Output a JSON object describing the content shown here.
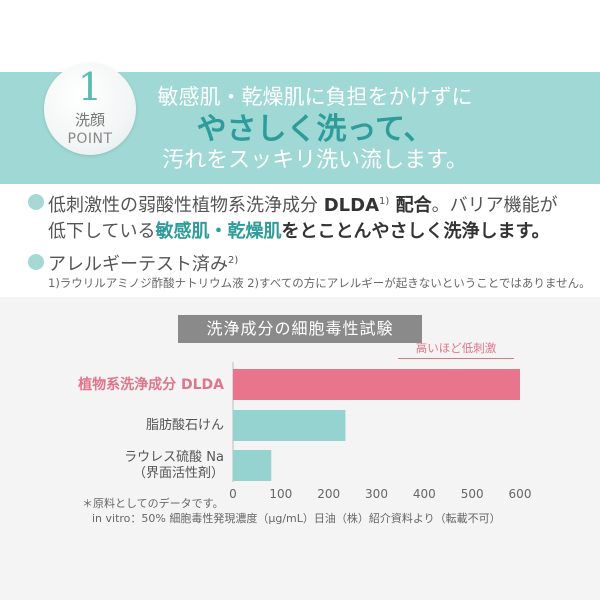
{
  "badge": {
    "number": "1",
    "word": "洗顔",
    "point": "POINT"
  },
  "headline": {
    "line1": "敏感肌・乾燥肌に負担をかけずに",
    "line2": "やさしく洗って、",
    "line3": "汚れをスッキリ洗い流します。"
  },
  "bullets": {
    "b1_part1": "低刺激性の弱酸性植物系洗浄成分 ",
    "b1_dlda": "DLDA",
    "b1_sup": "1)",
    "b1_part2": " 配合",
    "b1_part3": "。バリア機能が",
    "b1_line2_a": "低下している",
    "b1_line2_b": "敏感肌・乾燥肌",
    "b1_line2_c": "をとことんやさしく洗浄します。",
    "b2_text": "アレルギーテスト済み",
    "b2_sup": "2)",
    "footnote": "1)ラウリルアミノジ酢酸ナトリウム液 2)すべての方にアレルギーが起きないということではありません。"
  },
  "chart_data": {
    "type": "bar",
    "orientation": "horizontal",
    "title": "洗浄成分の細胞毒性試験",
    "annotation": "高いほど低刺激",
    "categories": [
      "植物系洗浄成分 DLDA",
      "脂肪酸石けん",
      "ラウレス硫酸 Na（界面活性剤）"
    ],
    "category_lines": [
      [
        "植物系洗浄成分 DLDA"
      ],
      [
        "脂肪酸石けん"
      ],
      [
        "ラウレス硫酸 Na",
        "（界面活性剤）"
      ]
    ],
    "values": [
      600,
      235,
      80
    ],
    "xlim": [
      0,
      600
    ],
    "xticks": [
      0,
      100,
      200,
      300,
      400,
      500,
      600
    ],
    "colors": [
      "#e8758c",
      "#95d3d0",
      "#95d3d0"
    ],
    "grid": false
  },
  "footer": {
    "line1": "＊原料としてのデータです。",
    "line2": "in vitro：50% 細胞毒性発現濃度（μg/mL）日油（株）紹介資料より（転載不可）"
  }
}
